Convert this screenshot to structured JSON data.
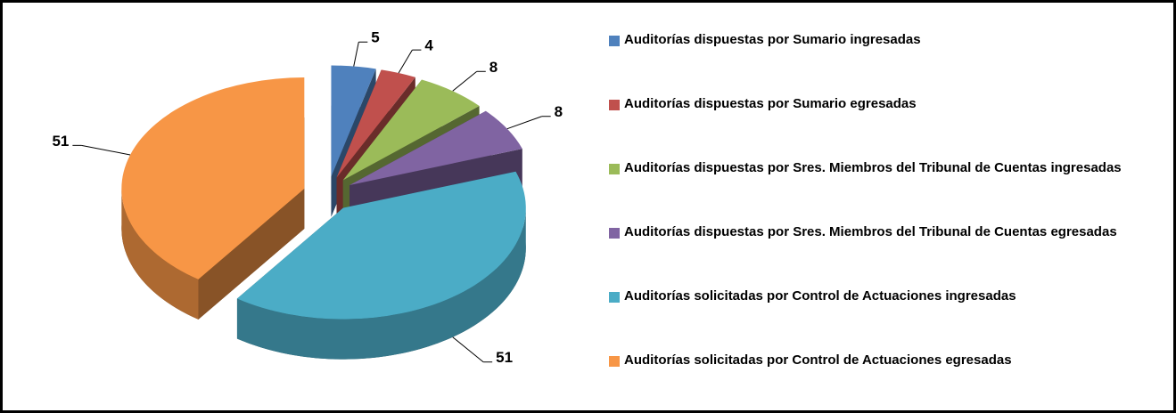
{
  "chart_data": {
    "type": "pie",
    "categories": [
      "Auditorías dispuestas por Sumario ingresadas",
      "Auditorías dispuestas por Sumario egresadas",
      "Auditorías dispuestas por Sres. Miembros del Tribunal de Cuentas ingresadas",
      "Auditorías dispuestas por Sres. Miembros del Tribunal de Cuentas egresadas",
      "Auditorías solicitadas por Control de Actuaciones ingresadas",
      "Auditorías solicitadas por Control de Actuaciones egresadas"
    ],
    "values": [
      5,
      4,
      8,
      8,
      51,
      51
    ],
    "colors": [
      "#4f81bd",
      "#c0504d",
      "#9bbb59",
      "#8064a2",
      "#4bacc6",
      "#f79646"
    ],
    "legend": "right"
  }
}
